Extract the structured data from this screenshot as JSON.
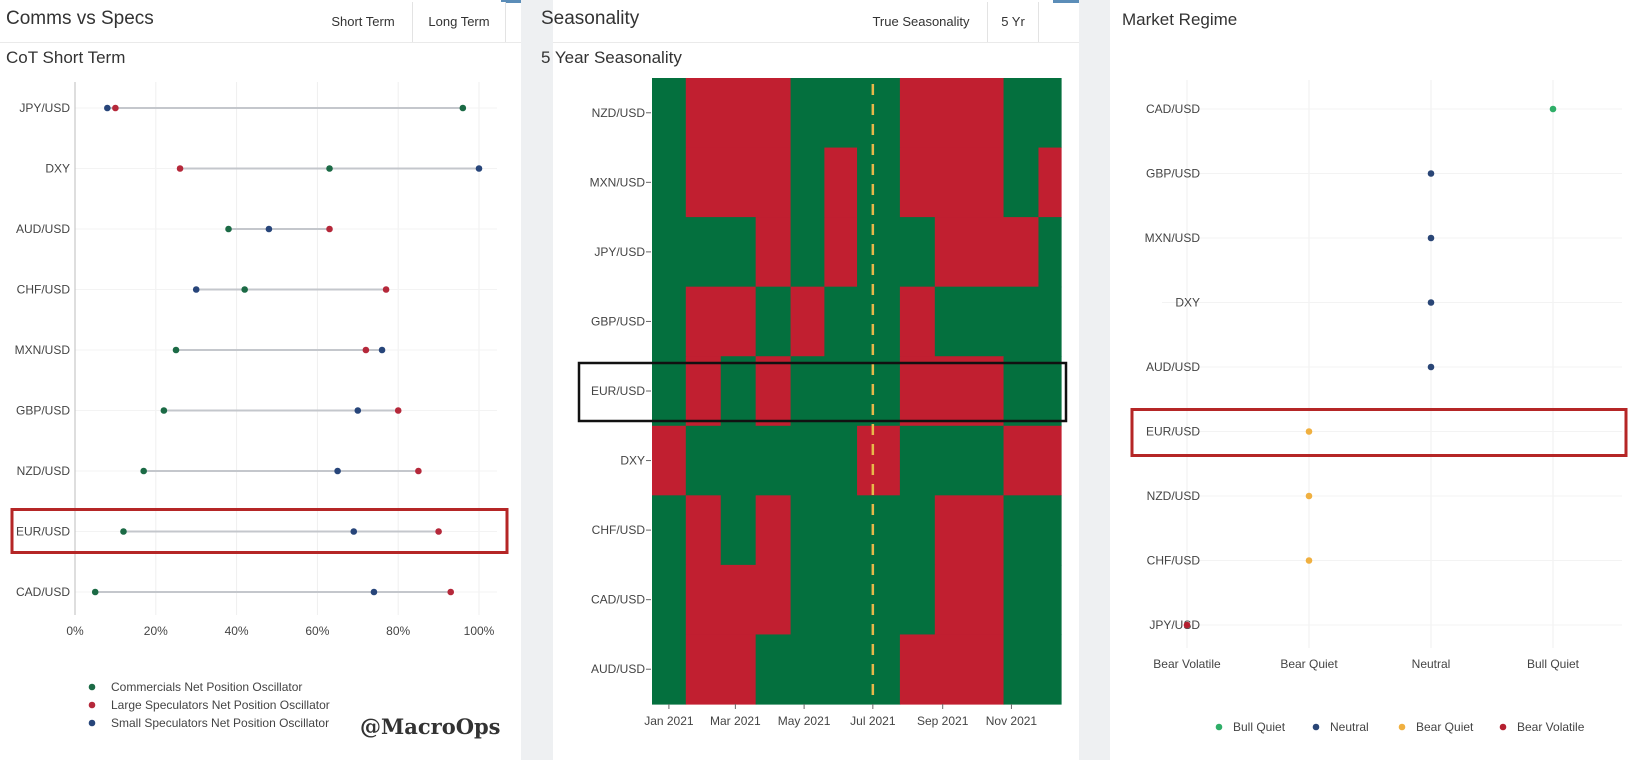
{
  "panels": {
    "cot": {
      "title": "Comms vs Specs",
      "tabs": [
        "Short Term",
        "Long Term"
      ],
      "active_tab": "Long Term",
      "subtitle": "CoT Short Term",
      "watermark": "@MacroOps"
    },
    "season": {
      "title": "Seasonality",
      "tabs": [
        "True Seasonality",
        "5 Yr"
      ],
      "active_tab": "5 Yr",
      "subtitle": "5 Year Seasonality"
    },
    "regime": {
      "title": "Market Regime"
    }
  },
  "colors": {
    "commercials": "#1b6a45",
    "large_specs": "#b5283a",
    "small_specs": "#27457a",
    "heat_green": "#04703e",
    "heat_red": "#c11f30",
    "seasonal_marker": "#e8b84a",
    "bull_quiet": "#2fae68",
    "neutral": "#2a4676",
    "bear_quiet": "#f0b040",
    "bear_volatile": "#b52030",
    "highlight_red": "#b52626",
    "highlight_black": "#111111"
  },
  "chart_data": [
    {
      "type": "scatter",
      "subtype": "dumbbell",
      "title": "CoT Short Term",
      "categories": [
        "JPY/USD",
        "DXY",
        "AUD/USD",
        "CHF/USD",
        "MXN/USD",
        "GBP/USD",
        "NZD/USD",
        "EUR/USD",
        "CAD/USD"
      ],
      "x_ticks": [
        "0%",
        "20%",
        "40%",
        "60%",
        "80%",
        "100%"
      ],
      "xlim": [
        0,
        100
      ],
      "series": [
        {
          "name": "Commercials Net Position Oscillator",
          "values": [
            96,
            63,
            38,
            42,
            25,
            22,
            17,
            12,
            5
          ]
        },
        {
          "name": "Large Speculators Net Position Oscillator",
          "values": [
            10,
            26,
            63,
            77,
            72,
            80,
            85,
            90,
            93
          ]
        },
        {
          "name": "Small Speculators Net Position Oscillator",
          "values": [
            8,
            100,
            48,
            30,
            76,
            70,
            65,
            69,
            74
          ]
        }
      ],
      "highlight": "EUR/USD",
      "legend_position": "bottom-left"
    },
    {
      "type": "heatmap",
      "title": "5 Year Seasonality",
      "rows": [
        "NZD/USD",
        "MXN/USD",
        "JPY/USD",
        "GBP/USD",
        "EUR/USD",
        "DXY",
        "CHF/USD",
        "CAD/USD",
        "AUD/USD"
      ],
      "x_ticks": [
        "Jan 2021",
        "Mar 2021",
        "May 2021",
        "Jul 2021",
        "Sep 2021",
        "Nov 2021"
      ],
      "x_range": [
        "2020-12-17",
        "2021-12-15"
      ],
      "vertical_marker": "2021-07-01",
      "segments": [
        [
          [
            "2020-12-17",
            "2021-01-16",
            "up"
          ],
          [
            "2021-01-16",
            "2021-04-19",
            "down"
          ],
          [
            "2021-04-19",
            "2021-07-25",
            "up"
          ],
          [
            "2021-07-25",
            "2021-10-25",
            "down"
          ],
          [
            "2021-10-25",
            "2021-12-15",
            "up"
          ]
        ],
        [
          [
            "2020-12-17",
            "2021-01-16",
            "up"
          ],
          [
            "2021-01-16",
            "2021-04-19",
            "down"
          ],
          [
            "2021-04-19",
            "2021-05-19",
            "up"
          ],
          [
            "2021-05-19",
            "2021-06-17",
            "down"
          ],
          [
            "2021-06-17",
            "2021-07-25",
            "up"
          ],
          [
            "2021-07-25",
            "2021-10-25",
            "down"
          ],
          [
            "2021-10-25",
            "2021-11-25",
            "up"
          ],
          [
            "2021-11-25",
            "2021-12-15",
            "down"
          ]
        ],
        [
          [
            "2020-12-17",
            "2021-03-19",
            "up"
          ],
          [
            "2021-03-19",
            "2021-04-19",
            "down"
          ],
          [
            "2021-04-19",
            "2021-05-19",
            "up"
          ],
          [
            "2021-05-19",
            "2021-06-17",
            "down"
          ],
          [
            "2021-06-17",
            "2021-08-25",
            "up"
          ],
          [
            "2021-08-25",
            "2021-11-25",
            "down"
          ],
          [
            "2021-11-25",
            "2021-12-15",
            "up"
          ]
        ],
        [
          [
            "2020-12-17",
            "2021-01-16",
            "up"
          ],
          [
            "2021-01-16",
            "2021-03-19",
            "down"
          ],
          [
            "2021-03-19",
            "2021-04-19",
            "up"
          ],
          [
            "2021-04-19",
            "2021-05-19",
            "down"
          ],
          [
            "2021-05-19",
            "2021-07-25",
            "up"
          ],
          [
            "2021-07-25",
            "2021-08-25",
            "down"
          ],
          [
            "2021-08-25",
            "2021-12-15",
            "up"
          ]
        ],
        [
          [
            "2020-12-17",
            "2021-01-16",
            "up"
          ],
          [
            "2021-01-16",
            "2021-02-16",
            "down"
          ],
          [
            "2021-02-16",
            "2021-03-19",
            "up"
          ],
          [
            "2021-03-19",
            "2021-04-19",
            "down"
          ],
          [
            "2021-04-19",
            "2021-07-25",
            "up"
          ],
          [
            "2021-07-25",
            "2021-10-25",
            "down"
          ],
          [
            "2021-10-25",
            "2021-12-15",
            "up"
          ]
        ],
        [
          [
            "2020-12-17",
            "2021-01-16",
            "down"
          ],
          [
            "2021-01-16",
            "2021-06-17",
            "up"
          ],
          [
            "2021-06-17",
            "2021-07-25",
            "down"
          ],
          [
            "2021-07-25",
            "2021-10-25",
            "up"
          ],
          [
            "2021-10-25",
            "2021-12-15",
            "down"
          ]
        ],
        [
          [
            "2020-12-17",
            "2021-01-16",
            "up"
          ],
          [
            "2021-01-16",
            "2021-02-16",
            "down"
          ],
          [
            "2021-02-16",
            "2021-03-19",
            "up"
          ],
          [
            "2021-03-19",
            "2021-04-19",
            "down"
          ],
          [
            "2021-04-19",
            "2021-08-25",
            "up"
          ],
          [
            "2021-08-25",
            "2021-10-25",
            "down"
          ],
          [
            "2021-10-25",
            "2021-12-15",
            "up"
          ]
        ],
        [
          [
            "2020-12-17",
            "2021-01-16",
            "up"
          ],
          [
            "2021-01-16",
            "2021-04-19",
            "down"
          ],
          [
            "2021-04-19",
            "2021-08-25",
            "up"
          ],
          [
            "2021-08-25",
            "2021-10-25",
            "down"
          ],
          [
            "2021-10-25",
            "2021-12-15",
            "up"
          ]
        ],
        [
          [
            "2020-12-17",
            "2021-01-16",
            "up"
          ],
          [
            "2021-01-16",
            "2021-03-19",
            "down"
          ],
          [
            "2021-03-19",
            "2021-07-25",
            "up"
          ],
          [
            "2021-07-25",
            "2021-10-25",
            "down"
          ],
          [
            "2021-10-25",
            "2021-12-15",
            "up"
          ]
        ]
      ],
      "highlight": "EUR/USD"
    },
    {
      "type": "scatter",
      "title": "Market Regime",
      "categories": [
        "CAD/USD",
        "GBP/USD",
        "MXN/USD",
        "DXY",
        "AUD/USD",
        "EUR/USD",
        "NZD/USD",
        "CHF/USD",
        "JPY/USD"
      ],
      "x_ticks": [
        "Bear Volatile",
        "Bear Quiet",
        "Neutral",
        "Bull Quiet"
      ],
      "values": [
        "Bull Quiet",
        "Neutral",
        "Neutral",
        "Neutral",
        "Neutral",
        "Bear Quiet",
        "Bear Quiet",
        "Bear Quiet",
        "Bear Volatile"
      ],
      "legend": [
        "Bull Quiet",
        "Neutral",
        "Bear Quiet",
        "Bear Volatile"
      ],
      "legend_position": "bottom",
      "highlight": "EUR/USD"
    }
  ]
}
